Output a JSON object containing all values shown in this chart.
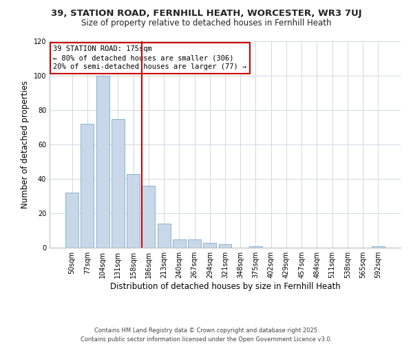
{
  "title": "39, STATION ROAD, FERNHILL HEATH, WORCESTER, WR3 7UJ",
  "subtitle": "Size of property relative to detached houses in Fernhill Heath",
  "xlabel": "Distribution of detached houses by size in Fernhill Heath",
  "ylabel": "Number of detached properties",
  "categories": [
    "50sqm",
    "77sqm",
    "104sqm",
    "131sqm",
    "158sqm",
    "186sqm",
    "213sqm",
    "240sqm",
    "267sqm",
    "294sqm",
    "321sqm",
    "348sqm",
    "375sqm",
    "402sqm",
    "429sqm",
    "457sqm",
    "484sqm",
    "511sqm",
    "538sqm",
    "565sqm",
    "592sqm"
  ],
  "values": [
    32,
    72,
    100,
    75,
    43,
    36,
    14,
    5,
    5,
    3,
    2,
    0,
    1,
    0,
    0,
    0,
    0,
    0,
    0,
    0,
    1
  ],
  "bar_color": "#c8d8e8",
  "bar_edge_color": "#7aaac8",
  "ylim": [
    0,
    120
  ],
  "yticks": [
    0,
    20,
    40,
    60,
    80,
    100,
    120
  ],
  "vline_color": "#cc0000",
  "annotation_line1": "39 STATION ROAD: 175sqm",
  "annotation_line2": "← 80% of detached houses are smaller (306)",
  "annotation_line3": "20% of semi-detached houses are larger (77) →",
  "annotation_box_color": "#cc0000",
  "footer_line1": "Contains HM Land Registry data © Crown copyright and database right 2025.",
  "footer_line2": "Contains public sector information licensed under the Open Government Licence v3.0.",
  "background_color": "#ffffff",
  "grid_color": "#d0d8e0",
  "title_fontsize": 9.5,
  "subtitle_fontsize": 8.5,
  "ylabel_fontsize": 8.5,
  "xlabel_fontsize": 8.5,
  "tick_fontsize": 7,
  "annotation_fontsize": 7.5,
  "footer_fontsize": 6
}
